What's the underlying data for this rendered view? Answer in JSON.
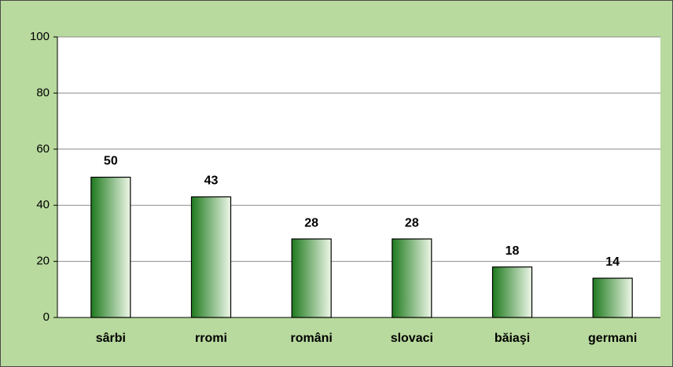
{
  "chart_data": {
    "type": "bar",
    "categories": [
      "sârbi",
      "rromi",
      "români",
      "slovaci",
      "băiaşi",
      "germani"
    ],
    "values": [
      50,
      43,
      28,
      28,
      18,
      14
    ],
    "color": "#1e7a1e",
    "ylim": [
      0,
      100
    ],
    "yticks": [
      0,
      20,
      40,
      60,
      80,
      100
    ],
    "grid": true
  }
}
